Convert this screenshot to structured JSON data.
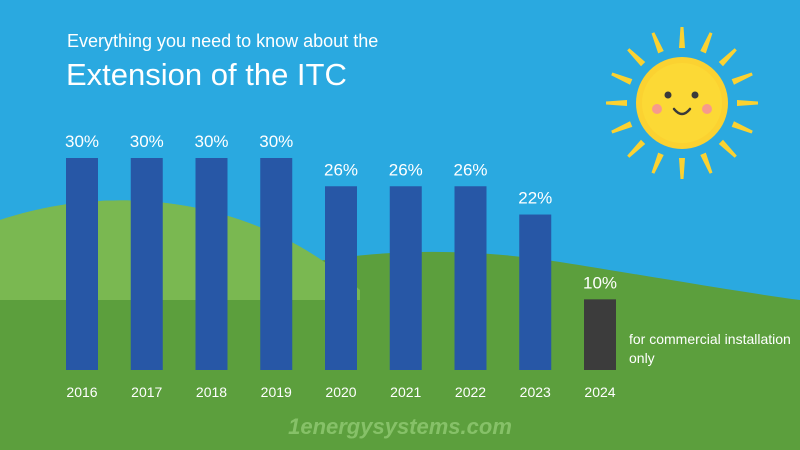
{
  "header": {
    "subtitle": "Everything you need to know about the",
    "title": "Extension of the ITC"
  },
  "chart_data": {
    "type": "bar",
    "title": "Extension of the ITC",
    "subtitle": "Everything you need to know about the",
    "xlabel": "",
    "ylabel": "",
    "categories": [
      "2016",
      "2017",
      "2018",
      "2019",
      "2020",
      "2021",
      "2022",
      "2023",
      "2024"
    ],
    "values": [
      30,
      30,
      30,
      30,
      26,
      26,
      26,
      22,
      10
    ],
    "labels": [
      "30%",
      "30%",
      "30%",
      "30%",
      "26%",
      "26%",
      "26%",
      "22%",
      "10%"
    ],
    "ylim": [
      0,
      30
    ],
    "grid": false,
    "annotations": [
      {
        "category": "2024",
        "text": "for commercial installation only"
      }
    ],
    "colors": {
      "bar": "#2757a6",
      "bar_highlight": "#3c3c3c",
      "highlight_category": "2024"
    }
  },
  "note": "for commercial installation only",
  "watermark": "1energysystems.com",
  "colors": {
    "sky": "#2aa9e0",
    "hill_light": "#7ab851",
    "hill_dark": "#5c9f3d",
    "sun": "#fbd231",
    "text": "#ffffff"
  },
  "icons": [
    "sun-icon"
  ]
}
